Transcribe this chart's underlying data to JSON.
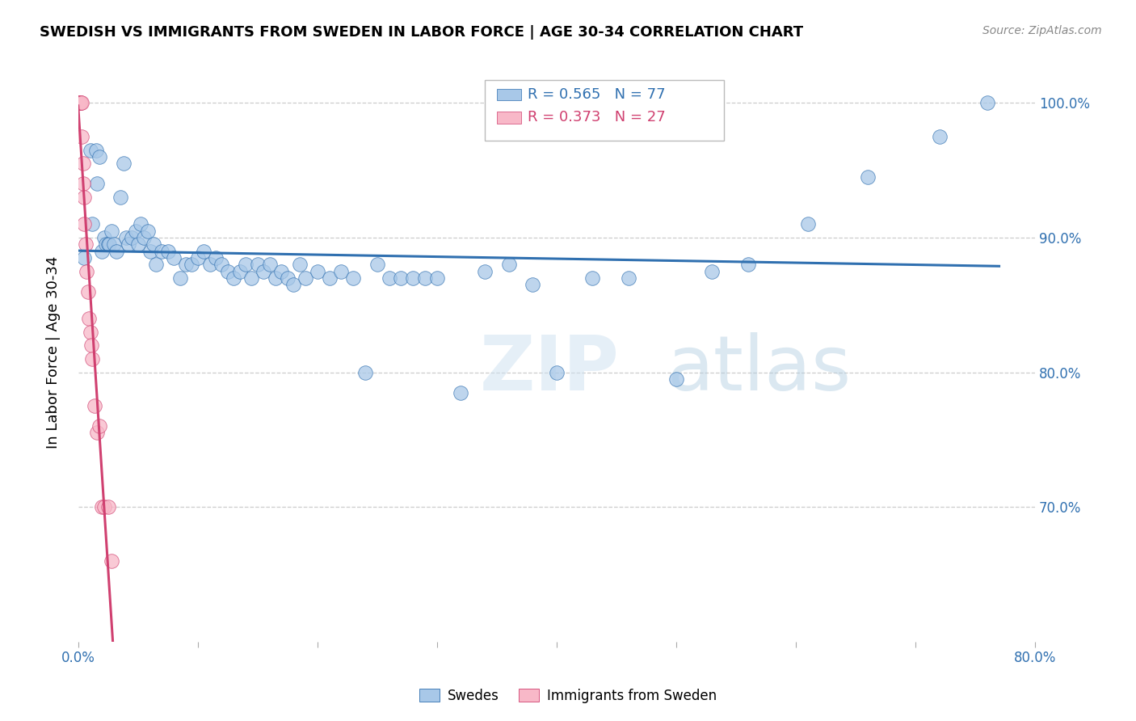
{
  "title": "SWEDISH VS IMMIGRANTS FROM SWEDEN IN LABOR FORCE | AGE 30-34 CORRELATION CHART",
  "source": "Source: ZipAtlas.com",
  "ylabel": "In Labor Force | Age 30-34",
  "xlim": [
    0.0,
    0.8
  ],
  "ylim": [
    0.6,
    1.03
  ],
  "xticks": [
    0.0,
    0.1,
    0.2,
    0.3,
    0.4,
    0.5,
    0.6,
    0.7,
    0.8
  ],
  "xticklabels": [
    "0.0%",
    "",
    "",
    "",
    "",
    "",
    "",
    "",
    "80.0%"
  ],
  "yticks": [
    0.7,
    0.8,
    0.9,
    1.0
  ],
  "yticklabels": [
    "70.0%",
    "80.0%",
    "90.0%",
    "100.0%"
  ],
  "legend_labels": [
    "Swedes",
    "Immigrants from Sweden"
  ],
  "blue_color": "#a8c8e8",
  "blue_line_color": "#3070b0",
  "pink_color": "#f8b8c8",
  "pink_line_color": "#d04070",
  "watermark_zip": "ZIP",
  "watermark_atlas": "atlas",
  "r_blue": 0.565,
  "n_blue": 77,
  "r_pink": 0.373,
  "n_pink": 27,
  "blue_x": [
    0.005,
    0.01,
    0.012,
    0.015,
    0.016,
    0.018,
    0.02,
    0.022,
    0.023,
    0.025,
    0.026,
    0.028,
    0.03,
    0.032,
    0.035,
    0.038,
    0.04,
    0.042,
    0.045,
    0.048,
    0.05,
    0.052,
    0.055,
    0.058,
    0.06,
    0.063,
    0.065,
    0.07,
    0.075,
    0.08,
    0.085,
    0.09,
    0.095,
    0.1,
    0.105,
    0.11,
    0.115,
    0.12,
    0.125,
    0.13,
    0.135,
    0.14,
    0.145,
    0.15,
    0.155,
    0.16,
    0.165,
    0.17,
    0.175,
    0.18,
    0.185,
    0.19,
    0.2,
    0.21,
    0.22,
    0.23,
    0.24,
    0.25,
    0.26,
    0.27,
    0.28,
    0.29,
    0.3,
    0.32,
    0.34,
    0.36,
    0.38,
    0.4,
    0.43,
    0.46,
    0.5,
    0.53,
    0.56,
    0.61,
    0.66,
    0.72,
    0.76
  ],
  "blue_y": [
    0.885,
    0.965,
    0.91,
    0.965,
    0.94,
    0.96,
    0.89,
    0.9,
    0.895,
    0.895,
    0.895,
    0.905,
    0.895,
    0.89,
    0.93,
    0.955,
    0.9,
    0.895,
    0.9,
    0.905,
    0.895,
    0.91,
    0.9,
    0.905,
    0.89,
    0.895,
    0.88,
    0.89,
    0.89,
    0.885,
    0.87,
    0.88,
    0.88,
    0.885,
    0.89,
    0.88,
    0.885,
    0.88,
    0.875,
    0.87,
    0.875,
    0.88,
    0.87,
    0.88,
    0.875,
    0.88,
    0.87,
    0.875,
    0.87,
    0.865,
    0.88,
    0.87,
    0.875,
    0.87,
    0.875,
    0.87,
    0.8,
    0.88,
    0.87,
    0.87,
    0.87,
    0.87,
    0.87,
    0.785,
    0.875,
    0.88,
    0.865,
    0.8,
    0.87,
    0.87,
    0.795,
    0.875,
    0.88,
    0.91,
    0.945,
    0.975,
    1.0
  ],
  "pink_x": [
    0.0,
    0.0,
    0.001,
    0.001,
    0.001,
    0.002,
    0.002,
    0.003,
    0.003,
    0.004,
    0.004,
    0.005,
    0.005,
    0.006,
    0.007,
    0.008,
    0.009,
    0.01,
    0.011,
    0.012,
    0.014,
    0.016,
    0.018,
    0.02,
    0.022,
    0.025,
    0.028
  ],
  "pink_y": [
    1.0,
    1.0,
    1.0,
    1.0,
    1.0,
    1.0,
    1.0,
    1.0,
    0.975,
    0.955,
    0.94,
    0.93,
    0.91,
    0.895,
    0.875,
    0.86,
    0.84,
    0.83,
    0.82,
    0.81,
    0.775,
    0.755,
    0.76,
    0.7,
    0.7,
    0.7,
    0.66
  ]
}
